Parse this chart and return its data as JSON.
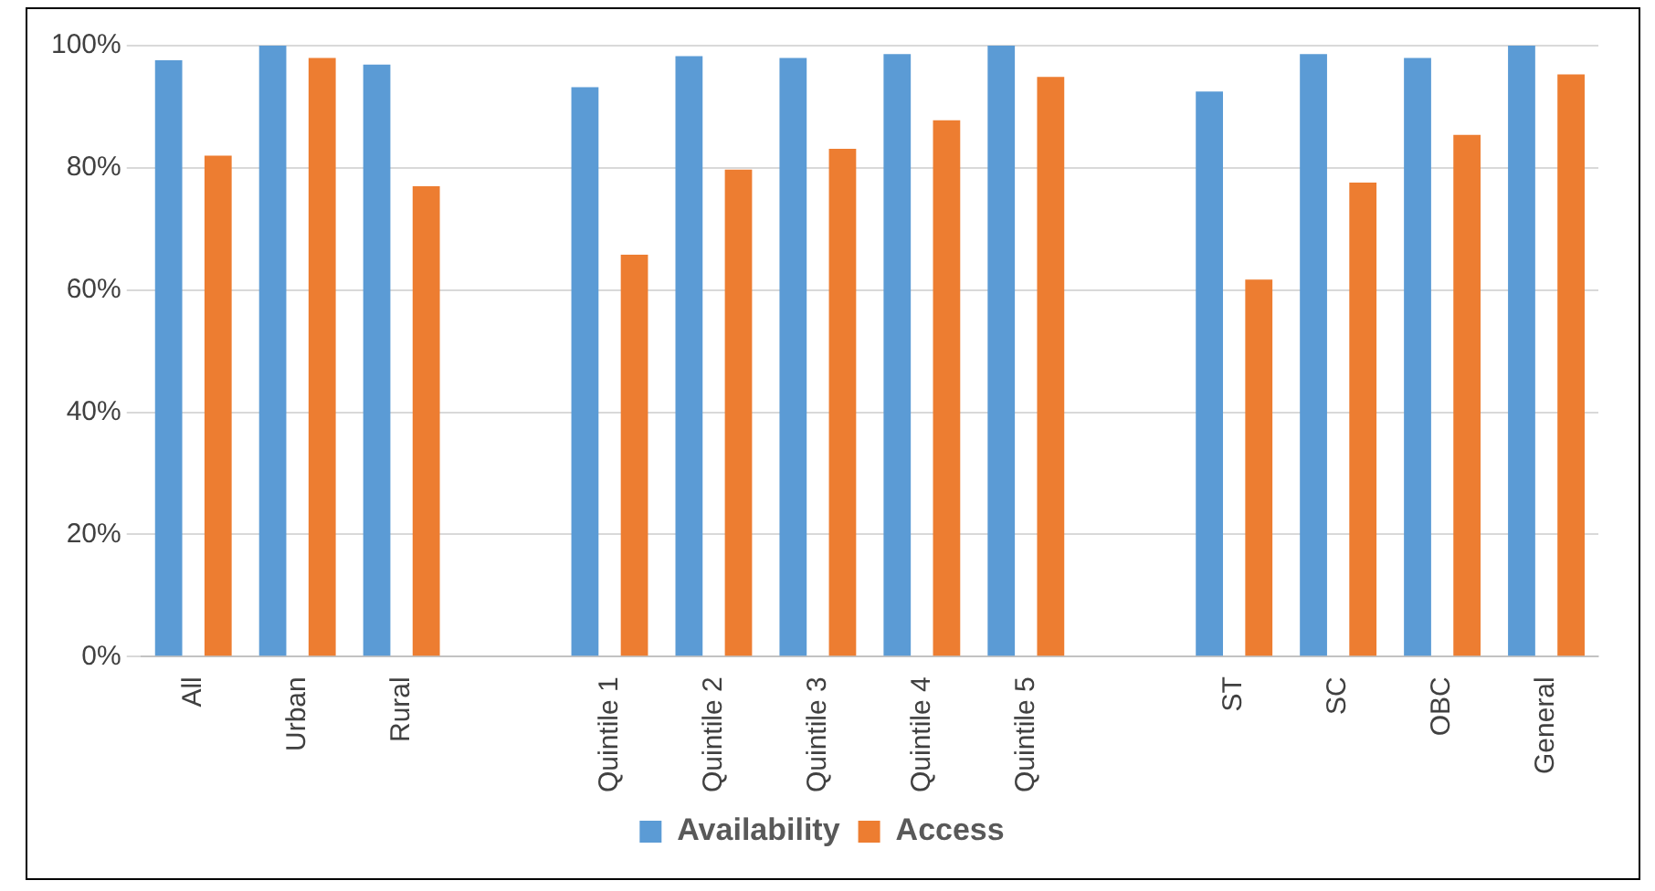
{
  "chart_data": {
    "type": "bar",
    "categories": [
      "All",
      "Urban",
      "Rural",
      null,
      "Quintile 1",
      "Quintile 2",
      "Quintile 3",
      "Quintile 4",
      "Quintile 5",
      null,
      "ST",
      "SC",
      "OBC",
      "General"
    ],
    "series": [
      {
        "name": "Availability",
        "color": "#5b9bd5",
        "values": [
          97.6,
          100,
          96.9,
          null,
          93.2,
          98.3,
          98,
          98.6,
          100,
          null,
          92.5,
          98.6,
          98,
          100
        ]
      },
      {
        "name": "Access",
        "color": "#ed7d31",
        "values": [
          82,
          98,
          77,
          null,
          65.8,
          79.7,
          83.1,
          87.8,
          94.9,
          null,
          61.7,
          77.6,
          85.4,
          95.3
        ]
      }
    ],
    "ylim": [
      0,
      100
    ],
    "yticks": [
      {
        "value": 0,
        "label": "0%"
      },
      {
        "value": 20,
        "label": "20%"
      },
      {
        "value": 40,
        "label": "40%"
      },
      {
        "value": 60,
        "label": "60%"
      },
      {
        "value": 80,
        "label": "80%"
      },
      {
        "value": 100,
        "label": "100%"
      }
    ],
    "grid": "y",
    "legend": "bottom"
  }
}
